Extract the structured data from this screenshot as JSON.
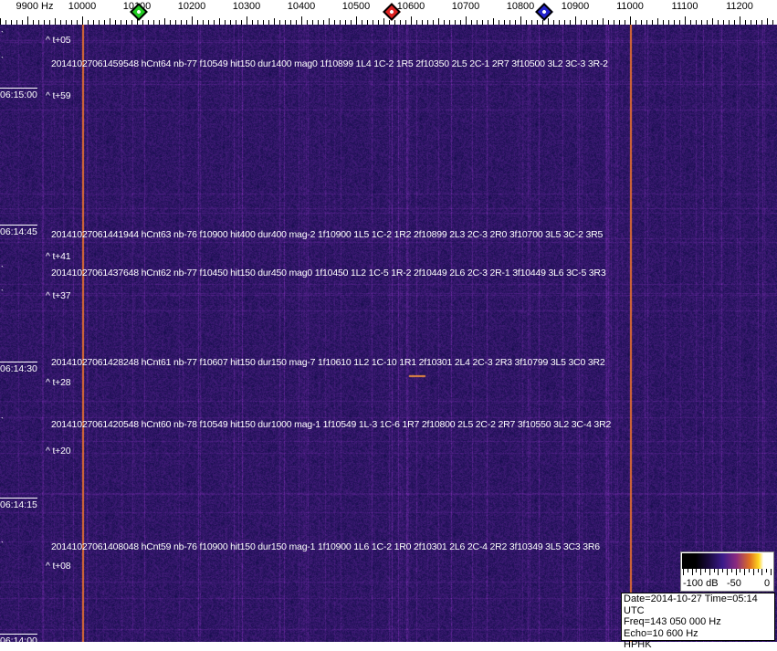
{
  "frequency_axis": {
    "labels": [
      {
        "freq": 9900,
        "text": "9900 Hz"
      },
      {
        "freq": 10000,
        "text": "10000"
      },
      {
        "freq": 10100,
        "text": "10100"
      },
      {
        "freq": 10200,
        "text": "10200"
      },
      {
        "freq": 10300,
        "text": "10300"
      },
      {
        "freq": 10400,
        "text": "10400"
      },
      {
        "freq": 10500,
        "text": "10500"
      },
      {
        "freq": 10600,
        "text": "10600"
      },
      {
        "freq": 10700,
        "text": "10700"
      },
      {
        "freq": 10800,
        "text": "10800"
      },
      {
        "freq": 10900,
        "text": "10900"
      },
      {
        "freq": 11000,
        "text": "11000"
      },
      {
        "freq": 11100,
        "text": "11100"
      },
      {
        "freq": 11200,
        "text": "11200"
      }
    ],
    "markers": [
      {
        "name": "green-marker",
        "freq": 10100,
        "color": "#22cc22"
      },
      {
        "name": "red-marker",
        "freq": 10560,
        "color": "#dd2222"
      },
      {
        "name": "blue-marker",
        "freq": 10840,
        "color": "#2222cc"
      }
    ]
  },
  "time_labels": [
    "06:15:00",
    "06:14:45",
    "06:14:30",
    "06:14:15",
    "06:14:00"
  ],
  "t_labels": [
    "^ t+05",
    "^ t+59",
    "^ t+41",
    "^ t+37",
    "^ t+28",
    "^ t+20",
    "^ t+08"
  ],
  "records": [
    "20141027061459548 hCnt64 nb-77 f10549 hit150 dur1400 mag0 1f10899 1L4 1C-2 1R5 2f10350 2L5 2C-1 2R7 3f10500 3L2 3C-3 3R-2",
    "20141027061441944 hCnt63 nb-76 f10900 hit400 dur400 mag-2 1f10900 1L5 1C-2 1R2 2f10899 2L3 2C-3 2R0 3f10700 3L5 3C-2 3R5",
    "20141027061437648 hCnt62 nb-77 f10450 hit150 dur450 mag0 1f10450 1L2 1C-5 1R-2 2f10449 2L6 2C-3 2R-1 3f10449 3L6 3C-5 3R3",
    "20141027061428248 hCnt61 nb-77 f10607 hit150 dur150 mag-7 1f10610 1L2 1C-10 1R1 2f10301 2L4 2C-3 2R3 3f10799 3L5 3C0 3R2",
    "20141027061420548 hCnt60 nb-78 f10549 hit150 dur1000 mag-1 1f10549 1L-3 1C-6 1R7 2f10800 2L5 2C-2 2R7 3f10550 3L2 3C-4 3R2",
    "20141027061408048 hCnt59 nb-76 f10900 hit150 dur150 mag-1 1f10900 1L6 1C-2 1R0 2f10301 2L6 2C-4 2R2 3f10349 3L5 3C3 3R6"
  ],
  "colorbar": {
    "labels": [
      "-100 dB",
      "-50",
      "0"
    ]
  },
  "info": {
    "date_time": "Date=2014-10-27 Time=05:14 UTC",
    "freq": "Freq=143 050 000 Hz",
    "echo": "Echo=10 600 Hz",
    "callsign": "HPHK"
  },
  "colors": {
    "background": "#2a1f70",
    "carrier": "#e87830"
  }
}
